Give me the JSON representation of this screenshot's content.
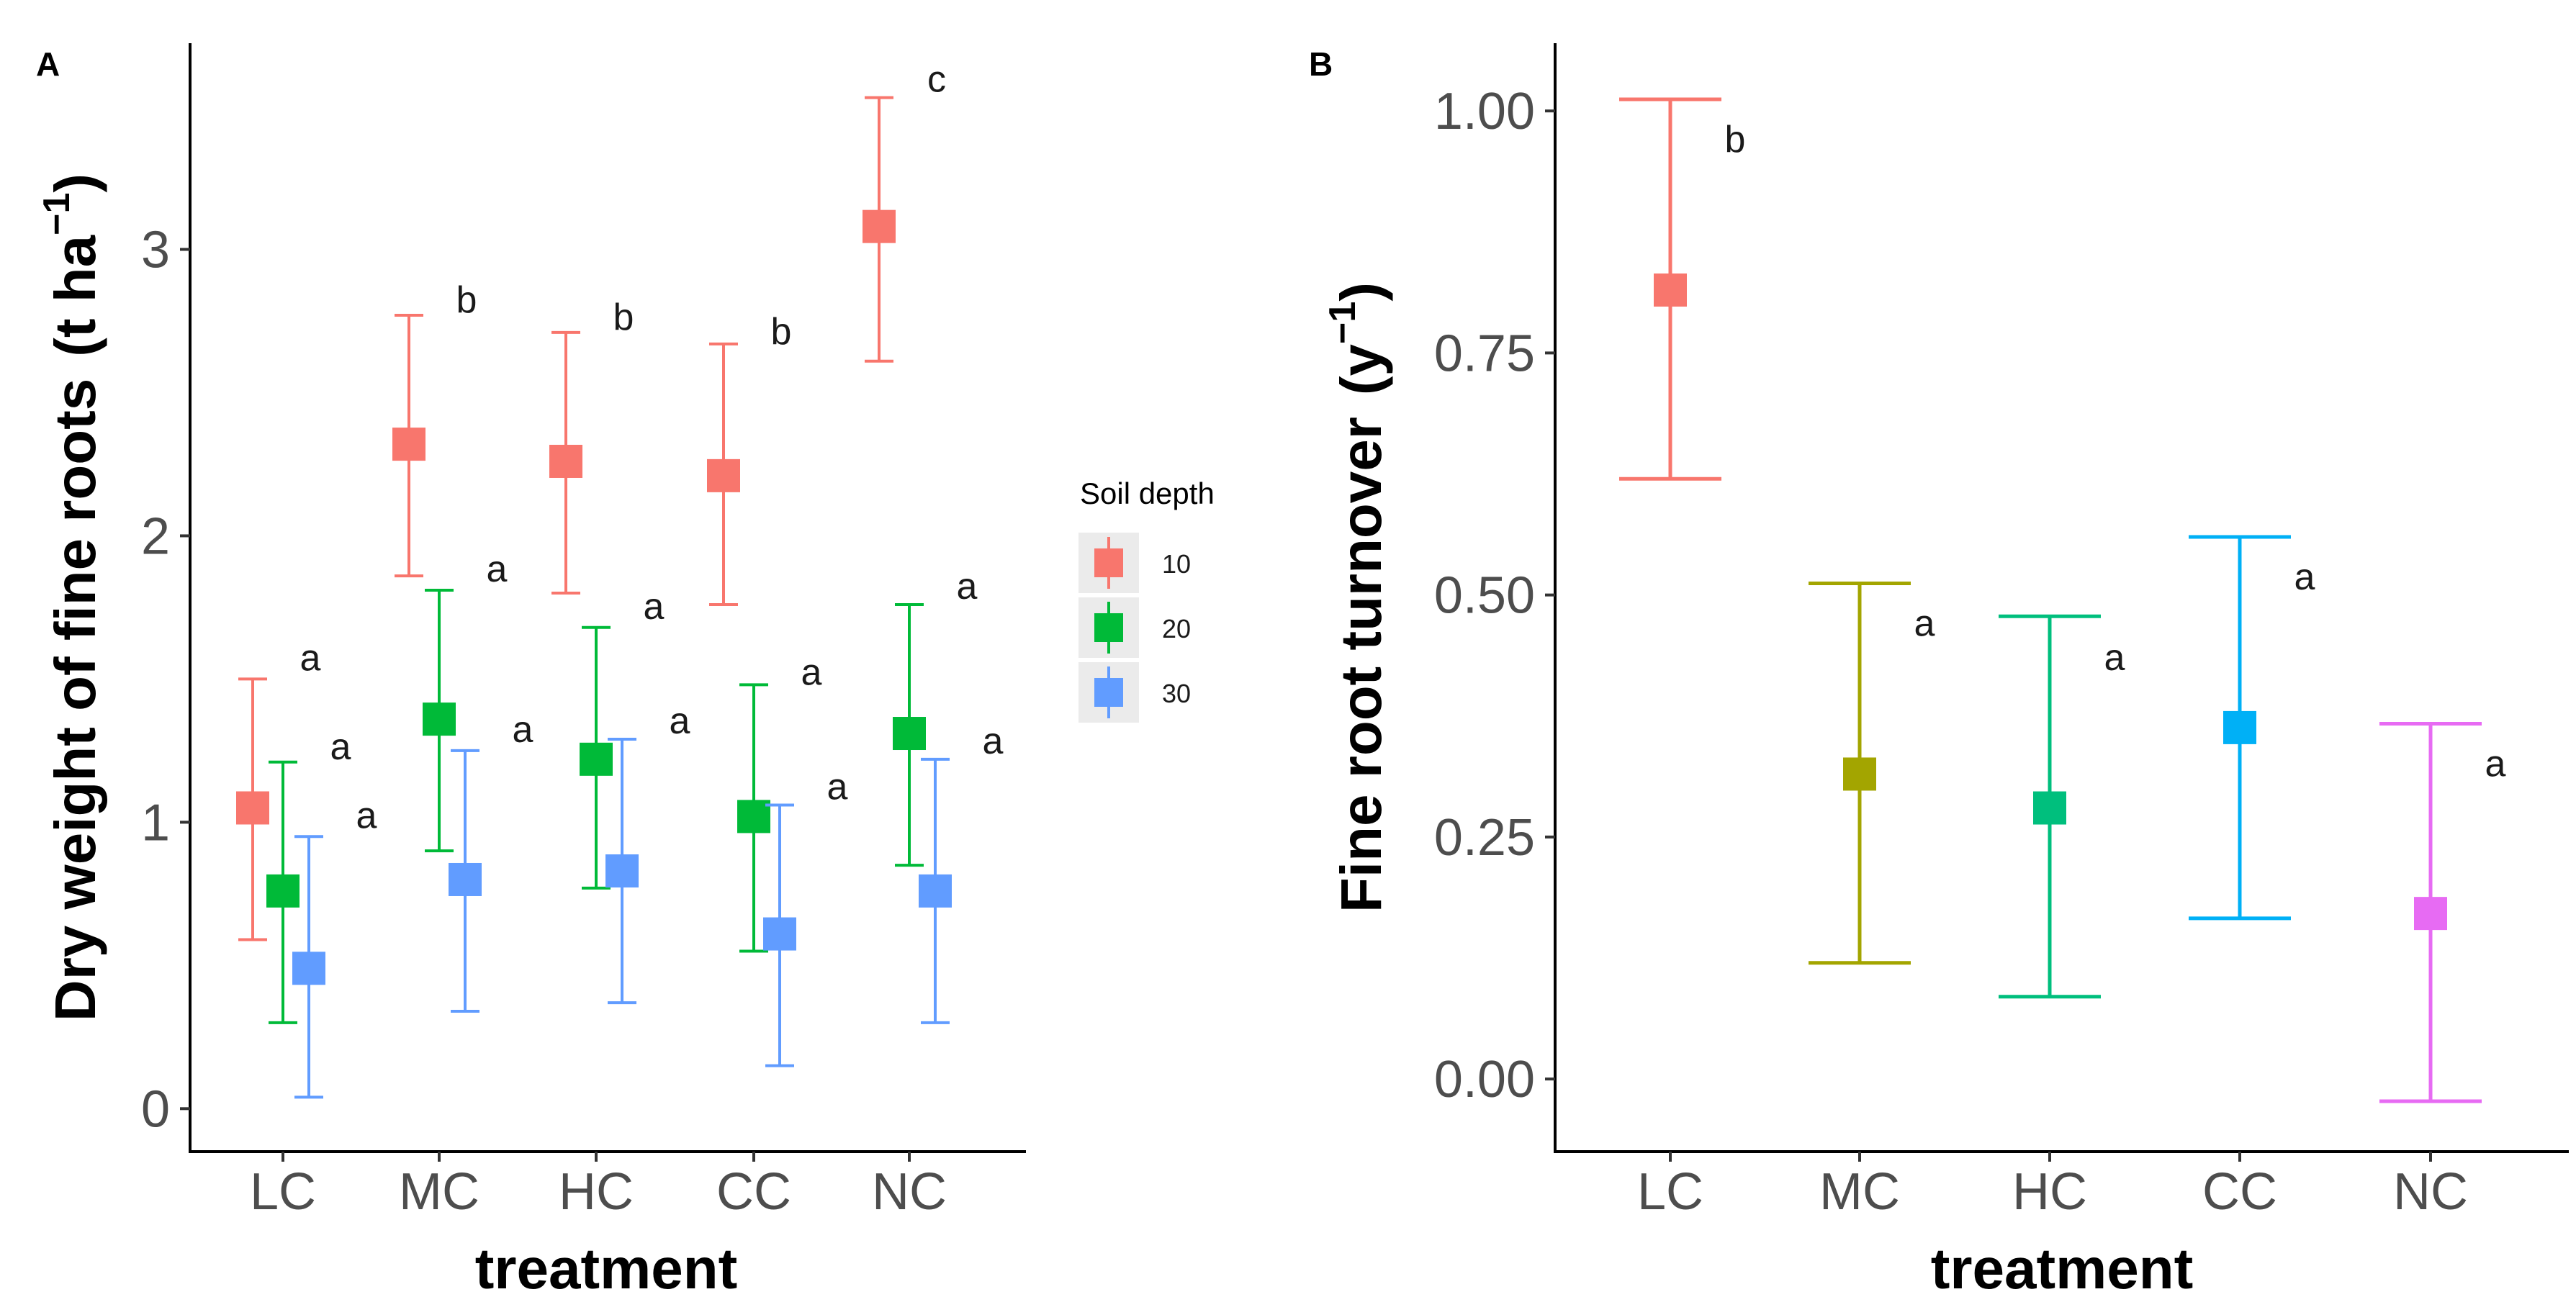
{
  "chart_data": [
    {
      "panel": "A",
      "type": "scatter",
      "subtype": "point-errorbar",
      "xlabel": "treatment",
      "ylabel": "Dry weight of fine roots",
      "ylabel_unit_prefix": "(t ha",
      "ylabel_unit_sup": "−1",
      "ylabel_unit_suffix": ")",
      "categories": [
        "LC",
        "MC",
        "HC",
        "CC",
        "NC"
      ],
      "ylim": [
        -0.15,
        3.72
      ],
      "yticks": [
        0,
        1,
        2,
        3
      ],
      "legend": {
        "title": "Soil depth",
        "position": "right",
        "entries": [
          "10",
          "20",
          "30"
        ]
      },
      "series": [
        {
          "name": "10",
          "color": "#F8766D",
          "mean": [
            1.05,
            2.32,
            2.26,
            2.21,
            3.08
          ],
          "lower": [
            0.59,
            1.86,
            1.8,
            1.76,
            2.61
          ],
          "upper": [
            1.5,
            2.77,
            2.71,
            2.67,
            3.53
          ],
          "letters": [
            "a",
            "b",
            "b",
            "b",
            "c"
          ],
          "letter_pos": [
            1.53,
            2.78,
            2.72,
            2.67,
            3.55
          ]
        },
        {
          "name": "20",
          "color": "#00BA38",
          "mean": [
            0.76,
            1.36,
            1.22,
            1.02,
            1.31
          ],
          "lower": [
            0.3,
            0.9,
            0.77,
            0.55,
            0.85
          ],
          "upper": [
            1.21,
            1.81,
            1.68,
            1.48,
            1.76
          ],
          "letters": [
            "a",
            "a",
            "a",
            "a",
            "a"
          ],
          "letter_pos": [
            1.22,
            1.84,
            1.71,
            1.48,
            1.78
          ]
        },
        {
          "name": "30",
          "color": "#619CFF",
          "mean": [
            0.49,
            0.8,
            0.83,
            0.61,
            0.76
          ],
          "lower": [
            0.04,
            0.34,
            0.37,
            0.15,
            0.3
          ],
          "upper": [
            0.95,
            1.25,
            1.29,
            1.06,
            1.22
          ],
          "letters": [
            "a",
            "a",
            "a",
            "a",
            "a"
          ],
          "letter_pos": [
            0.98,
            1.28,
            1.31,
            1.08,
            1.24
          ]
        }
      ]
    },
    {
      "panel": "B",
      "type": "scatter",
      "subtype": "point-errorbar",
      "xlabel": "treatment",
      "ylabel": "Fine root turnover",
      "ylabel_unit_prefix": "(y",
      "ylabel_unit_sup": "−1",
      "ylabel_unit_suffix": ")",
      "categories": [
        "LC",
        "MC",
        "HC",
        "CC",
        "NC"
      ],
      "ylim": [
        -0.075,
        1.07
      ],
      "yticks": [
        0.0,
        0.25,
        0.5,
        0.75,
        1.0
      ],
      "ytick_labels": [
        "0.00",
        "0.25",
        "0.50",
        "0.75",
        "1.00"
      ],
      "series": [
        {
          "name": "turnover",
          "colors": [
            "#F8766D",
            "#A3A500",
            "#00BF7D",
            "#00B0F6",
            "#E76BF3"
          ],
          "mean": [
            0.815,
            0.315,
            0.28,
            0.363,
            0.171
          ],
          "lower": [
            0.62,
            0.12,
            0.085,
            0.166,
            -0.023
          ],
          "upper": [
            1.012,
            0.512,
            0.478,
            0.56,
            0.367
          ],
          "letters": [
            "b",
            "a",
            "a",
            "a",
            "a"
          ],
          "letter_pos": [
            0.965,
            0.465,
            0.43,
            0.513,
            0.32
          ]
        }
      ]
    }
  ]
}
